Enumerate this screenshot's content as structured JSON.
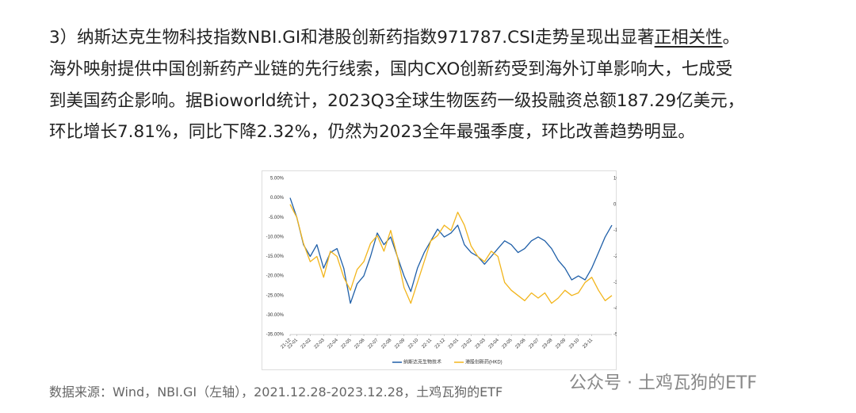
{
  "paragraph": [
    [
      "3）纳斯达克生物科技指数NBI.GI和港股创新药指数971787.CSI走势呈现出显著",
      "正相关性",
      "。"
    ],
    [
      "海外映射提供中国创新药产业链的先行线索，国内CXO创新药受到海外订单影响大，七成受"
    ],
    [
      "到美国药企影响。据Bioworld统计，2023Q3全球生物医药一级投融资总额187.29亿美元，"
    ],
    [
      "环比增长7.81%，同比下降2.32%，仍然为2023全年最强季度，环比改善趋势明显。"
    ]
  ],
  "chart_data": {
    "type": "line",
    "categories": [
      "21-12",
      "22-01",
      null,
      "22-02",
      null,
      "22-03",
      null,
      "22-04",
      null,
      "22-05",
      null,
      "22-06",
      null,
      "22-07",
      null,
      "22-08",
      null,
      "22-09",
      null,
      "22-10",
      null,
      "22-11",
      null,
      "22-12",
      null,
      "23-01",
      null,
      "23-02",
      null,
      "23-03",
      null,
      "23-04",
      null,
      "23-05",
      null,
      "23-06",
      null,
      "23-07",
      null,
      "23-08",
      null,
      "23-09",
      null,
      "23-10",
      null,
      "23-11",
      null,
      null,
      null
    ],
    "series": [
      {
        "name": "纳斯达克生物技术",
        "color": "#1f5fa8",
        "values": [
          0,
          -5,
          -12,
          -15,
          -12,
          -18,
          -14,
          -13,
          -18,
          -27,
          -22,
          -20,
          -15,
          -9,
          -12,
          -10,
          -15,
          -20,
          -24,
          -18,
          -14,
          -11,
          -8,
          -10,
          -9,
          -7,
          -12,
          -14,
          -15,
          -17,
          -15,
          -13,
          -11,
          -12,
          -14,
          -13,
          -11,
          -10,
          -11,
          -13,
          -16,
          -18,
          -21,
          -20,
          -21,
          -18,
          -14,
          -10,
          -7
        ]
      },
      {
        "name": "港股创新药(HKD)",
        "color": "#f2b51c",
        "axis": "y2",
        "values": [
          0,
          -5,
          -15,
          -22,
          -20,
          -28,
          -18,
          -20,
          -28,
          -33,
          -25,
          -22,
          -15,
          -12,
          -18,
          -10,
          -20,
          -32,
          -38,
          -30,
          -22,
          -14,
          -12,
          -8,
          -10,
          -3,
          -8,
          -16,
          -20,
          -22,
          -18,
          -20,
          -30,
          -33,
          -35,
          -37,
          -34,
          -36,
          -34,
          -38,
          -36,
          -33,
          -35,
          -34,
          -30,
          -28,
          -33,
          -37,
          -35
        ]
      }
    ],
    "ylim": [
      -35,
      5
    ],
    "yticks": [
      {
        "value": 5,
        "label": "5.00%"
      },
      {
        "value": 0,
        "label": "0.00%"
      },
      {
        "value": -5,
        "label": "-5.00%"
      },
      {
        "value": -10,
        "label": "-10.00%"
      },
      {
        "value": -15,
        "label": "-15.00%"
      },
      {
        "value": -20,
        "label": "-20.00%"
      },
      {
        "value": -25,
        "label": "-25.00%"
      },
      {
        "value": -30,
        "label": "-30.00%"
      },
      {
        "value": -35,
        "label": "-35.00%"
      }
    ],
    "y2lim": [
      -50,
      10
    ],
    "y2ticks": [
      {
        "value": 10,
        "label": "10.00%"
      },
      {
        "value": 0,
        "label": "0.00%"
      },
      {
        "value": -10,
        "label": "-10.00%"
      },
      {
        "value": -20,
        "label": "-20.00%"
      },
      {
        "value": -30,
        "label": "-30.00%"
      },
      {
        "value": -40,
        "label": "-40.00%"
      },
      {
        "value": -50,
        "label": "-50.00%"
      }
    ],
    "legend": "bottom"
  },
  "caption": "数据来源：Wind，NBI.GI（左轴），2021.12.28-2023.12.28，土鸡瓦狗的ETF",
  "watermark": "公众号 · 土鸡瓦狗的ETF"
}
